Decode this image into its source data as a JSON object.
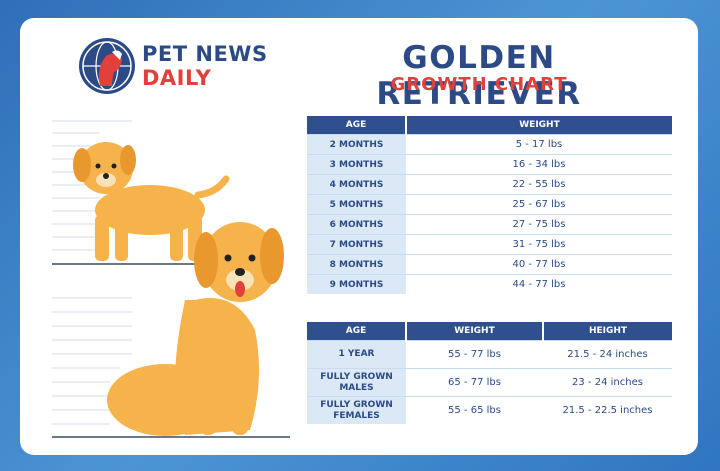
{
  "logo": {
    "line1": "PET NEWS",
    "line2": "DAILY"
  },
  "header": {
    "title": "GOLDEN RETRIEVER",
    "subtitle": "GROWTH CHART"
  },
  "puppy_table": {
    "columns": [
      "AGE",
      "WEIGHT"
    ],
    "rows": [
      [
        "2 MONTHS",
        "5 - 17 lbs"
      ],
      [
        "3 MONTHS",
        "16 - 34 lbs"
      ],
      [
        "4 MONTHS",
        "22 - 55 lbs"
      ],
      [
        "5 MONTHS",
        "25 - 67 lbs"
      ],
      [
        "6 MONTHS",
        "27 - 75 lbs"
      ],
      [
        "7 MONTHS",
        "31 - 75 lbs"
      ],
      [
        "8 MONTHS",
        "40 - 77 lbs"
      ],
      [
        "9 MONTHS",
        "44 - 77 lbs"
      ]
    ]
  },
  "adult_table": {
    "columns": [
      "AGE",
      "WEIGHT",
      "HEIGHT"
    ],
    "rows": [
      [
        "1 YEAR",
        "55 - 77 lbs",
        "21.5 - 24 inches"
      ],
      [
        "FULLY GROWN MALES",
        "65 - 77 lbs",
        "23 - 24 inches"
      ],
      [
        "FULLY GROWN FEMALES",
        "55 - 65 lbs",
        "21.5 - 22.5 inches"
      ]
    ]
  }
}
